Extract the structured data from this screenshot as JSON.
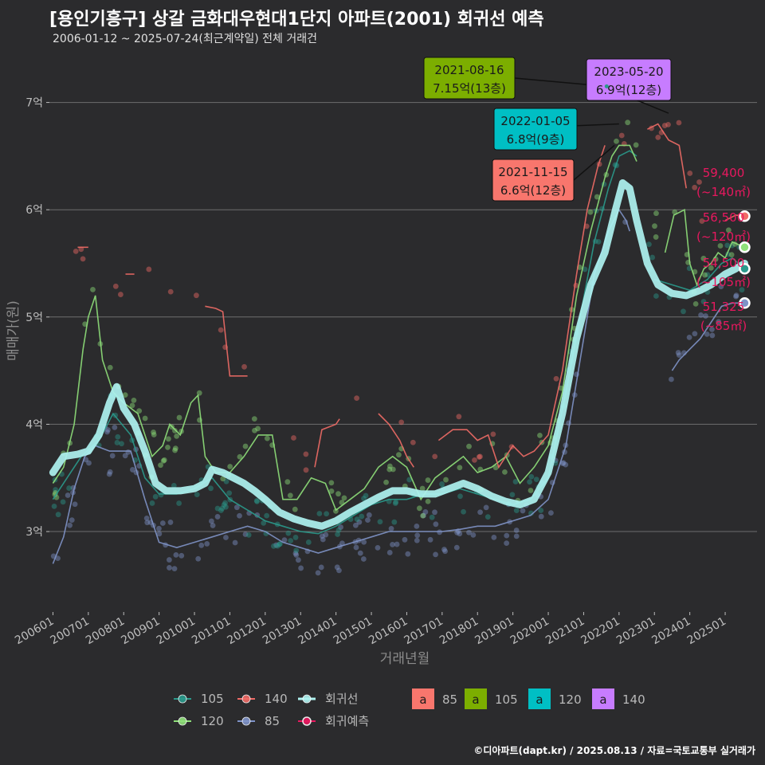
{
  "title": "[용인기흥구] 상갈 금화대우현대1단지 아파트(2001) 회귀선 예측",
  "subtitle": "2006-01-12 ~ 2025-07-24(최근계약일) 전체 거래건",
  "credit": "©디아파트(dapt.kr) / 2025.08.13 / 자료=국토교통부 실거래가",
  "colors": {
    "s105": "#2a9a8c",
    "s120": "#8fe07a",
    "s140": "#f06b66",
    "s85": "#7f93c8",
    "regression": "#aef2f0",
    "forecast": "#e8185f",
    "box85": "#f8766d",
    "box105": "#7cae00",
    "box120": "#00bfc4",
    "box140": "#c77cff"
  },
  "chart_data": {
    "type": "line",
    "xlabel": "거래년월",
    "ylabel": "매매가(원)",
    "xlim": [
      2005.9,
      2025.9
    ],
    "ylim": [
      2.25,
      7.45
    ],
    "x_ticks": [
      "200601",
      "200701",
      "200801",
      "200901",
      "201001",
      "201101",
      "201201",
      "201301",
      "201401",
      "201501",
      "201601",
      "201701",
      "201801",
      "201901",
      "202001",
      "202101",
      "202201",
      "202301",
      "202401",
      "202501"
    ],
    "y_ticks": [
      {
        "v": 3,
        "label": "3억"
      },
      {
        "v": 4,
        "label": "4억"
      },
      {
        "v": 5,
        "label": "5억"
      },
      {
        "v": 6,
        "label": "6억"
      },
      {
        "v": 7,
        "label": "7억"
      }
    ],
    "series": [
      {
        "name": "85",
        "color_key": "s85",
        "points": [
          [
            2006.0,
            2.7
          ],
          [
            2006.3,
            2.95
          ],
          [
            2006.6,
            3.4
          ],
          [
            2006.9,
            3.7
          ],
          [
            2007.2,
            3.8
          ],
          [
            2007.6,
            3.75
          ],
          [
            2008.2,
            3.75
          ],
          [
            2008.6,
            3.3
          ],
          [
            2009.0,
            2.9
          ],
          [
            2009.5,
            2.85
          ],
          [
            2010.0,
            2.9
          ],
          [
            2010.5,
            2.95
          ],
          [
            2011.0,
            3.0
          ],
          [
            2011.5,
            3.05
          ],
          [
            2012.0,
            3.0
          ],
          [
            2012.5,
            2.9
          ],
          [
            2013.0,
            2.85
          ],
          [
            2013.5,
            2.8
          ],
          [
            2014.0,
            2.85
          ],
          [
            2014.5,
            2.9
          ],
          [
            2015.0,
            2.95
          ],
          [
            2015.5,
            3.0
          ],
          [
            2016.0,
            3.0
          ],
          [
            2016.5,
            3.0
          ],
          [
            2017.0,
            3.0
          ],
          [
            2017.5,
            3.02
          ],
          [
            2018.0,
            3.05
          ],
          [
            2018.5,
            3.05
          ],
          [
            2019.0,
            3.1
          ],
          [
            2019.5,
            3.15
          ],
          [
            2020.0,
            3.3
          ],
          [
            2020.5,
            3.8
          ],
          [
            2020.9,
            4.6
          ],
          [
            2021.3,
            5.4
          ],
          [
            2021.7,
            5.8
          ],
          [
            2022.0,
            6.0
          ],
          [
            2022.2,
            5.9
          ],
          [
            2022.3,
            5.8
          ]
        ]
      },
      {
        "name": "85b",
        "color_key": "s85",
        "points": [
          [
            2023.5,
            4.5
          ],
          [
            2023.7,
            4.6
          ],
          [
            2024.0,
            4.7
          ],
          [
            2024.3,
            4.8
          ],
          [
            2024.6,
            4.95
          ],
          [
            2024.9,
            5.1
          ],
          [
            2025.2,
            5.13
          ],
          [
            2025.55,
            5.13
          ]
        ]
      },
      {
        "name": "105",
        "color_key": "s105",
        "points": [
          [
            2006.0,
            3.3
          ],
          [
            2006.4,
            3.5
          ],
          [
            2006.8,
            3.7
          ],
          [
            2007.3,
            3.85
          ],
          [
            2007.7,
            4.1
          ],
          [
            2008.2,
            3.9
          ],
          [
            2008.6,
            3.5
          ],
          [
            2009.0,
            3.35
          ],
          [
            2009.5,
            3.35
          ],
          [
            2010.0,
            3.4
          ],
          [
            2010.5,
            3.5
          ],
          [
            2011.0,
            3.3
          ],
          [
            2011.5,
            3.2
          ],
          [
            2012.0,
            3.1
          ],
          [
            2012.5,
            3.05
          ],
          [
            2013.0,
            3.0
          ],
          [
            2013.5,
            2.98
          ],
          [
            2014.0,
            3.05
          ],
          [
            2014.5,
            3.15
          ],
          [
            2015.0,
            3.25
          ],
          [
            2015.5,
            3.3
          ],
          [
            2016.0,
            3.3
          ],
          [
            2016.5,
            3.35
          ],
          [
            2017.0,
            3.35
          ],
          [
            2017.5,
            3.4
          ],
          [
            2018.0,
            3.35
          ],
          [
            2018.5,
            3.3
          ],
          [
            2019.0,
            3.25
          ],
          [
            2019.5,
            3.3
          ],
          [
            2020.0,
            3.5
          ],
          [
            2020.5,
            4.3
          ],
          [
            2020.9,
            5.0
          ],
          [
            2021.3,
            5.7
          ],
          [
            2021.7,
            6.2
          ],
          [
            2022.0,
            6.5
          ],
          [
            2022.3,
            6.55
          ],
          [
            2022.5,
            6.5
          ]
        ]
      },
      {
        "name": "105b",
        "color_key": "s105",
        "points": [
          [
            2023.0,
            5.35
          ],
          [
            2023.5,
            5.3
          ],
          [
            2024.0,
            5.25
          ],
          [
            2024.5,
            5.35
          ],
          [
            2024.9,
            5.5
          ],
          [
            2025.2,
            5.55
          ],
          [
            2025.55,
            5.45
          ]
        ]
      },
      {
        "name": "120",
        "color_key": "s120",
        "points": [
          [
            2006.0,
            3.45
          ],
          [
            2006.3,
            3.6
          ],
          [
            2006.6,
            4.0
          ],
          [
            2006.85,
            4.7
          ],
          [
            2007.0,
            5.0
          ],
          [
            2007.2,
            5.2
          ],
          [
            2007.4,
            4.6
          ],
          [
            2007.7,
            4.3
          ],
          [
            2008.0,
            4.2
          ],
          [
            2008.4,
            4.1
          ],
          [
            2008.8,
            3.7
          ],
          [
            2009.1,
            3.8
          ],
          [
            2009.3,
            4.0
          ],
          [
            2009.6,
            3.9
          ],
          [
            2009.9,
            4.2
          ],
          [
            2010.1,
            4.27
          ],
          [
            2010.3,
            3.7
          ],
          [
            2010.6,
            3.55
          ],
          [
            2011.0,
            3.55
          ],
          [
            2011.4,
            3.7
          ],
          [
            2011.8,
            3.9
          ],
          [
            2012.2,
            3.9
          ],
          [
            2012.5,
            3.3
          ],
          [
            2012.9,
            3.3
          ],
          [
            2013.3,
            3.5
          ],
          [
            2013.7,
            3.45
          ],
          [
            2014.0,
            3.2
          ],
          [
            2014.4,
            3.3
          ],
          [
            2014.8,
            3.4
          ],
          [
            2015.2,
            3.6
          ],
          [
            2015.6,
            3.7
          ],
          [
            2016.0,
            3.6
          ],
          [
            2016.4,
            3.3
          ],
          [
            2016.8,
            3.5
          ],
          [
            2017.2,
            3.6
          ],
          [
            2017.6,
            3.7
          ],
          [
            2018.0,
            3.55
          ],
          [
            2018.4,
            3.6
          ],
          [
            2018.8,
            3.7
          ],
          [
            2019.2,
            3.45
          ],
          [
            2019.6,
            3.6
          ],
          [
            2020.0,
            3.8
          ],
          [
            2020.4,
            4.3
          ],
          [
            2020.8,
            5.2
          ],
          [
            2021.2,
            5.8
          ],
          [
            2021.6,
            6.3
          ],
          [
            2021.8,
            6.5
          ],
          [
            2022.0,
            6.6
          ],
          [
            2022.3,
            6.6
          ],
          [
            2022.5,
            6.45
          ]
        ]
      },
      {
        "name": "120b",
        "color_key": "s120",
        "points": [
          [
            2023.3,
            5.6
          ],
          [
            2023.55,
            5.95
          ],
          [
            2023.85,
            6.0
          ],
          [
            2024.0,
            5.5
          ],
          [
            2024.2,
            5.3
          ],
          [
            2024.4,
            5.45
          ],
          [
            2024.6,
            5.5
          ],
          [
            2024.8,
            5.6
          ],
          [
            2025.0,
            5.55
          ],
          [
            2025.2,
            5.7
          ],
          [
            2025.55,
            5.65
          ]
        ]
      },
      {
        "name": "140a",
        "color_key": "s140",
        "points": [
          [
            2006.7,
            5.65
          ],
          [
            2007.0,
            5.65
          ]
        ]
      },
      {
        "name": "140b",
        "color_key": "s140",
        "points": [
          [
            2008.05,
            5.4
          ],
          [
            2008.3,
            5.4
          ]
        ]
      },
      {
        "name": "140c",
        "color_key": "s140",
        "points": [
          [
            2010.3,
            5.1
          ],
          [
            2010.6,
            5.08
          ],
          [
            2010.8,
            5.05
          ],
          [
            2011.0,
            4.45
          ],
          [
            2011.5,
            4.45
          ]
        ]
      },
      {
        "name": "140d",
        "color_key": "s140",
        "points": [
          [
            2013.4,
            3.6
          ],
          [
            2013.6,
            3.95
          ],
          [
            2014.0,
            4.0
          ],
          [
            2014.1,
            4.05
          ]
        ]
      },
      {
        "name": "140e",
        "color_key": "s140",
        "points": [
          [
            2015.2,
            4.1
          ],
          [
            2015.5,
            4.0
          ],
          [
            2015.8,
            3.85
          ],
          [
            2016.0,
            3.7
          ],
          [
            2016.2,
            3.6
          ]
        ]
      },
      {
        "name": "140f",
        "color_key": "s140",
        "points": [
          [
            2016.9,
            3.85
          ],
          [
            2017.3,
            3.95
          ],
          [
            2017.7,
            3.95
          ],
          [
            2018.0,
            3.85
          ],
          [
            2018.3,
            3.9
          ],
          [
            2018.6,
            3.6
          ],
          [
            2019.0,
            3.8
          ],
          [
            2019.3,
            3.7
          ],
          [
            2019.6,
            3.75
          ],
          [
            2020.0,
            3.9
          ],
          [
            2020.4,
            4.5
          ],
          [
            2020.8,
            5.4
          ],
          [
            2021.1,
            6.0
          ],
          [
            2021.4,
            6.4
          ],
          [
            2021.6,
            6.6
          ]
        ]
      },
      {
        "name": "140g",
        "color_key": "s140",
        "points": [
          [
            2022.8,
            6.75
          ],
          [
            2023.1,
            6.8
          ],
          [
            2023.4,
            6.65
          ],
          [
            2023.7,
            6.6
          ],
          [
            2023.9,
            6.2
          ]
        ]
      },
      {
        "name": "140h",
        "color_key": "s140",
        "points": [
          [
            2025.0,
            5.9
          ],
          [
            2025.3,
            5.95
          ],
          [
            2025.55,
            5.94
          ]
        ]
      }
    ],
    "regression": [
      [
        2006.0,
        3.55
      ],
      [
        2006.3,
        3.7
      ],
      [
        2006.7,
        3.72
      ],
      [
        2007.0,
        3.75
      ],
      [
        2007.3,
        3.9
      ],
      [
        2007.6,
        4.2
      ],
      [
        2007.8,
        4.35
      ],
      [
        2008.0,
        4.15
      ],
      [
        2008.3,
        4.0
      ],
      [
        2008.6,
        3.75
      ],
      [
        2008.9,
        3.45
      ],
      [
        2009.2,
        3.38
      ],
      [
        2009.6,
        3.38
      ],
      [
        2010.0,
        3.4
      ],
      [
        2010.3,
        3.45
      ],
      [
        2010.5,
        3.58
      ],
      [
        2010.8,
        3.55
      ],
      [
        2011.1,
        3.5
      ],
      [
        2011.4,
        3.45
      ],
      [
        2011.7,
        3.38
      ],
      [
        2012.0,
        3.3
      ],
      [
        2012.4,
        3.18
      ],
      [
        2012.8,
        3.12
      ],
      [
        2013.2,
        3.08
      ],
      [
        2013.6,
        3.05
      ],
      [
        2014.0,
        3.1
      ],
      [
        2014.4,
        3.18
      ],
      [
        2014.8,
        3.25
      ],
      [
        2015.2,
        3.32
      ],
      [
        2015.6,
        3.38
      ],
      [
        2016.0,
        3.38
      ],
      [
        2016.4,
        3.35
      ],
      [
        2016.8,
        3.35
      ],
      [
        2017.2,
        3.4
      ],
      [
        2017.6,
        3.45
      ],
      [
        2018.0,
        3.4
      ],
      [
        2018.4,
        3.33
      ],
      [
        2018.8,
        3.28
      ],
      [
        2019.2,
        3.25
      ],
      [
        2019.6,
        3.3
      ],
      [
        2020.0,
        3.55
      ],
      [
        2020.4,
        4.1
      ],
      [
        2020.8,
        4.8
      ],
      [
        2021.2,
        5.3
      ],
      [
        2021.6,
        5.6
      ],
      [
        2021.9,
        6.0
      ],
      [
        2022.1,
        6.25
      ],
      [
        2022.3,
        6.2
      ],
      [
        2022.5,
        5.9
      ],
      [
        2022.8,
        5.5
      ],
      [
        2023.1,
        5.3
      ],
      [
        2023.5,
        5.22
      ],
      [
        2023.9,
        5.2
      ],
      [
        2024.3,
        5.25
      ],
      [
        2024.6,
        5.3
      ],
      [
        2025.0,
        5.4
      ],
      [
        2025.3,
        5.45
      ],
      [
        2025.55,
        5.5
      ]
    ],
    "scatter_seeds": [
      {
        "key": "s85",
        "x0": 2006,
        "x1": 2025.5,
        "n": 150
      },
      {
        "key": "s105",
        "x0": 2006,
        "x1": 2025.5,
        "n": 120
      },
      {
        "key": "s120",
        "x0": 2006,
        "x1": 2025.5,
        "n": 110
      },
      {
        "key": "s140",
        "x0": 2006.5,
        "x1": 2025.5,
        "n": 40
      }
    ],
    "callouts": [
      {
        "date": "2021-08-16",
        "price": "7.15억(13층)",
        "box_key": "box105",
        "tx": 2021.65,
        "ty": 7.15
      },
      {
        "date": "2023-05-20",
        "price": "6.9억(12층)",
        "box_key": "box140",
        "tx": 2023.4,
        "ty": 6.9
      },
      {
        "date": "2022-01-05",
        "price": "6.8억(9층)",
        "box_key": "box120",
        "tx": 2022.0,
        "ty": 6.8
      },
      {
        "date": "2021-11-15",
        "price": "6.6억(12층)",
        "box_key": "box85",
        "tx": 2021.87,
        "ty": 6.6
      }
    ],
    "end_points": [
      {
        "key": "s140",
        "y": 5.94
      },
      {
        "key": "s120",
        "y": 5.65
      },
      {
        "key": "s105",
        "y": 5.45
      },
      {
        "key": "s85",
        "y": 5.13
      }
    ],
    "end_labels": [
      {
        "value": "59,400",
        "area": "(~140㎡)"
      },
      {
        "value": "56,500",
        "area": "(~120㎡)"
      },
      {
        "value": "54,500",
        "area": "(~105㎡)"
      },
      {
        "value": "51,325",
        "area": "(~85㎡)"
      }
    ],
    "legend_lines": [
      {
        "label": "105",
        "key": "s105"
      },
      {
        "label": "140",
        "key": "s140"
      },
      {
        "label": "회귀선",
        "key": "regression"
      },
      {
        "label": "120",
        "key": "s120"
      },
      {
        "label": "85",
        "key": "s85"
      },
      {
        "label": "회귀예측",
        "key": "forecast"
      }
    ],
    "legend_boxes": [
      {
        "glyph": "a",
        "label": "85",
        "key": "box85"
      },
      {
        "glyph": "a",
        "label": "105",
        "key": "box105"
      },
      {
        "glyph": "a",
        "label": "120",
        "key": "box120"
      },
      {
        "glyph": "a",
        "label": "140",
        "key": "box140"
      }
    ]
  }
}
